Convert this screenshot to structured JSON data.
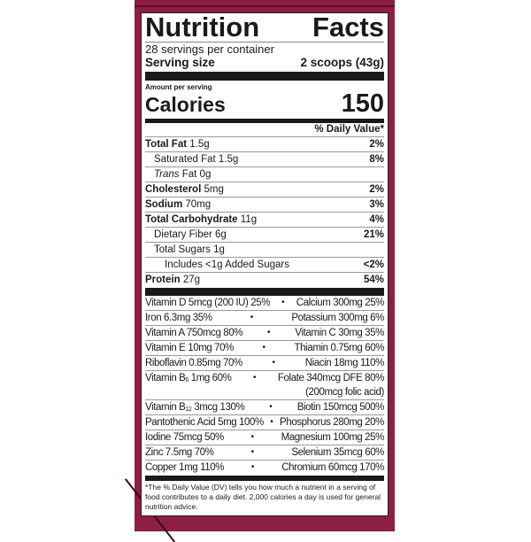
{
  "title_words": [
    "Nutrition",
    "Facts"
  ],
  "servings_per_container": "28 servings per container",
  "serving_size_label": "Serving size",
  "serving_size_value": "2 scoops (43g)",
  "amount_per_serving": "Amount per serving",
  "calories_label": "Calories",
  "calories_value": "150",
  "daily_value_header": "% Daily Value*",
  "nutrients": [
    {
      "name": "Total Fat",
      "amount": "1.5g",
      "dv": "2%"
    },
    {
      "name": "Saturated Fat",
      "amount": "1.5g",
      "dv": "8%"
    },
    {
      "name": "Trans",
      "amount": "Fat 0g",
      "dv": ""
    },
    {
      "name": "Cholesterol",
      "amount": "5mg",
      "dv": "2%"
    },
    {
      "name": "Sodium",
      "amount": "70mg",
      "dv": "3%"
    },
    {
      "name": "Total Carbohydrate",
      "amount": "11g",
      "dv": "4%"
    },
    {
      "name": "Dietary Fiber",
      "amount": "6g",
      "dv": "21%"
    },
    {
      "name": "Total Sugars",
      "amount": "1g",
      "dv": ""
    },
    {
      "name": "Includes <1g Added Sugars",
      "amount": "",
      "dv": "<2%"
    },
    {
      "name": "Protein",
      "amount": "27g",
      "dv": "54%"
    }
  ],
  "vitamins": [
    {
      "left": "Vitamin D 5mcg (200 IU) 25%",
      "right": "Calcium 300mg 25%"
    },
    {
      "left": "Iron 6.3mg 35%",
      "right": "Potassium 300mg 6%"
    },
    {
      "left": "Vitamin A 750mcg 80%",
      "right": "Vitamin C 30mg 35%"
    },
    {
      "left": "Vitamin E 10mg 70%",
      "right": "Thiamin 0.75mg 60%"
    },
    {
      "left": "Riboflavin 0.85mg 70%",
      "right": "Niacin 18mg 110%"
    },
    {
      "left_pre": "Vitamin B",
      "left_sub": "6",
      "left_post": " 1mg 60%",
      "right": "Folate 340mcg DFE 80%",
      "right2": "(200mcg folic acid)"
    },
    {
      "left_pre": "Vitamin B",
      "left_sub": "12",
      "left_post": " 3mcg 130%",
      "right": "Biotin 150mcg 500%"
    },
    {
      "left": "Pantothenic Acid 5mg 100%",
      "right": "Phosphorus 280mg 20%"
    },
    {
      "left": "Iodine 75mcg 50%",
      "right": "Magnesium 100mg 25%"
    },
    {
      "left": "Zinc 7.5mg 70%",
      "right": "Selenium 35mcg 60%"
    },
    {
      "left": "Copper 1mg 110%",
      "right": "Chromium 60mcg 170%"
    }
  ],
  "bullet": "•",
  "footnote": "*The % Daily Value (DV) tells you how much a nutrient in a serving of food contributes to a daily diet. 2,000 calories a day is used for general nutrition advice.",
  "colors": {
    "panel": "#8c1f43"
  }
}
